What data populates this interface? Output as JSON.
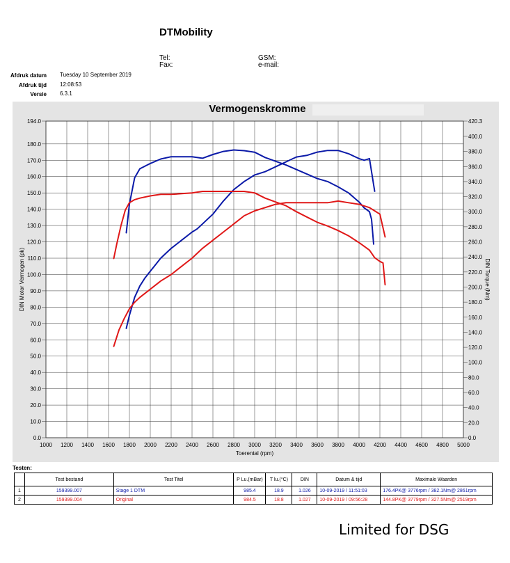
{
  "header": {
    "company": "DTMobility",
    "tel_label": "Tel:",
    "fax_label": "Fax:",
    "gsm_label": "GSM:",
    "email_label": "e-mail:"
  },
  "meta": [
    {
      "label": "Afdruk datum",
      "value": "Tuesday 10 September 2019"
    },
    {
      "label": "Afdruk tijd",
      "value": "12:08:53"
    },
    {
      "label": "Versie",
      "value": "6.3.1"
    }
  ],
  "chart_data": {
    "type": "line",
    "title": "Vermogenskromme",
    "xlabel": "Toerental (rpm)",
    "ylabel_left": "DIN Motor Vermogen (pk)",
    "ylabel_right": "DIN Torque (Nm)",
    "xlim": [
      1000,
      5000
    ],
    "ylim_left": [
      0,
      194
    ],
    "ylim_right": [
      0,
      420.3
    ],
    "x_ticks": [
      "1000",
      "1200",
      "1400",
      "1600",
      "1800",
      "2000",
      "2200",
      "2400",
      "2600",
      "2800",
      "3000",
      "3200",
      "3400",
      "3600",
      "3800",
      "4000",
      "4200",
      "4400",
      "4600",
      "4800",
      "5000"
    ],
    "y_left_ticks": [
      "0.0",
      "10.0",
      "20.0",
      "30.0",
      "40.0",
      "50.0",
      "60.0",
      "70.0",
      "80.0",
      "90.0",
      "100.0",
      "110.0",
      "120.0",
      "130.0",
      "140.0",
      "150.0",
      "160.0",
      "170.0",
      "180.0",
      "194.0"
    ],
    "y_left_tick_values": [
      0,
      10,
      20,
      30,
      40,
      50,
      60,
      70,
      80,
      90,
      100,
      110,
      120,
      130,
      140,
      150,
      160,
      170,
      180,
      194
    ],
    "y_right_ticks": [
      "0.0",
      "20.0",
      "40.0",
      "60.0",
      "80.0",
      "100.0",
      "120.0",
      "140.0",
      "160.0",
      "180.0",
      "200.0",
      "220.0",
      "240.0",
      "260.0",
      "280.0",
      "300.0",
      "320.0",
      "340.0",
      "360.0",
      "380.0",
      "400.0",
      "420.3"
    ],
    "y_right_tick_values": [
      0,
      20,
      40,
      60,
      80,
      100,
      120,
      140,
      160,
      180,
      200,
      220,
      240,
      260,
      280,
      300,
      320,
      340,
      360,
      380,
      400,
      420.3
    ],
    "grid": true,
    "series": [
      {
        "name": "Stage 1 DTM",
        "kind": "power",
        "axis": "left",
        "color": "#0b1aa8",
        "x": [
          1770,
          1800,
          1850,
          1900,
          1950,
          2000,
          2100,
          2200,
          2300,
          2400,
          2450,
          2500,
          2600,
          2700,
          2800,
          2900,
          2950,
          3000,
          3100,
          3200,
          3300,
          3400,
          3500,
          3600,
          3700,
          3800,
          3900,
          4000,
          4050,
          4100,
          4150
        ],
        "y": [
          67,
          75,
          86,
          93,
          98,
          102,
          110,
          116,
          121,
          126,
          128,
          131,
          137,
          145,
          152,
          157,
          159,
          161,
          163,
          166,
          169,
          172,
          173,
          175,
          176,
          176,
          174,
          171,
          170,
          171,
          151
        ]
      },
      {
        "name": "Stage 1 DTM",
        "kind": "torque",
        "axis": "right",
        "color": "#0b1aa8",
        "x": [
          1770,
          1800,
          1850,
          1900,
          2000,
          2100,
          2200,
          2300,
          2400,
          2500,
          2600,
          2700,
          2800,
          2900,
          3000,
          3100,
          3200,
          3300,
          3400,
          3500,
          3600,
          3700,
          3800,
          3900,
          4000,
          4050,
          4100,
          4120,
          4140
        ],
        "y": [
          272,
          310,
          345,
          357,
          364,
          370,
          373,
          373,
          373,
          371,
          376,
          380,
          382,
          381,
          379,
          372,
          367,
          362,
          356,
          350,
          344,
          340,
          333,
          325,
          313,
          305,
          300,
          290,
          257
        ]
      },
      {
        "name": "Original",
        "kind": "power",
        "axis": "left",
        "color": "#e01818",
        "x": [
          1650,
          1700,
          1750,
          1800,
          1850,
          1900,
          2000,
          2100,
          2200,
          2300,
          2400,
          2500,
          2600,
          2700,
          2800,
          2900,
          3000,
          3100,
          3200,
          3300,
          3400,
          3500,
          3600,
          3700,
          3800,
          3900,
          4000,
          4100,
          4150,
          4200,
          4250
        ],
        "y": [
          56,
          66,
          73,
          79,
          83,
          86,
          91,
          96,
          100,
          105,
          110,
          116,
          121,
          126,
          131,
          136,
          139,
          141,
          143,
          144,
          144,
          144,
          144,
          144,
          145,
          144,
          143,
          141,
          139,
          137,
          123
        ]
      },
      {
        "name": "Original",
        "kind": "torque",
        "axis": "right",
        "color": "#e01818",
        "x": [
          1650,
          1680,
          1720,
          1760,
          1800,
          1850,
          1900,
          2000,
          2100,
          2200,
          2300,
          2400,
          2500,
          2600,
          2700,
          2800,
          2900,
          3000,
          3100,
          3200,
          3300,
          3400,
          3500,
          3600,
          3700,
          3800,
          3900,
          4000,
          4100,
          4150,
          4200,
          4230,
          4250
        ],
        "y": [
          238,
          258,
          282,
          302,
          312,
          316,
          318,
          321,
          323,
          323,
          324,
          325,
          327,
          327,
          327,
          327,
          327,
          325,
          318,
          313,
          308,
          300,
          293,
          286,
          281,
          275,
          268,
          259,
          249,
          239,
          234,
          232,
          203
        ]
      }
    ]
  },
  "tests": {
    "label": "Testen:",
    "columns": [
      "Test bestand",
      "Test Titel",
      "P Lu.(mBar)",
      "T lu.(°C)",
      "DIN",
      "Datum & tijd",
      "Maximale Waarden"
    ],
    "rows": [
      {
        "num": "1",
        "file": "159399.007",
        "title": "Stage 1 DTM",
        "p": "985.4",
        "t": "18.9",
        "din": "1.026",
        "date": "10-09-2019 / 11:51:03",
        "max": "176.4PK@ 3776rpm / 382.1Nm@ 2861rpm",
        "color": "#0b1aa8"
      },
      {
        "num": "2",
        "file": "159399.004",
        "title": "Original",
        "p": "984.5",
        "t": "18.8",
        "din": "1.027",
        "date": "10-09-2019 / 09:56:28",
        "max": "144.8PK@ 3779rpm / 327.5Nm@ 2519rpm",
        "color": "#e01818"
      }
    ]
  },
  "footer_note": "Limited for DSG"
}
